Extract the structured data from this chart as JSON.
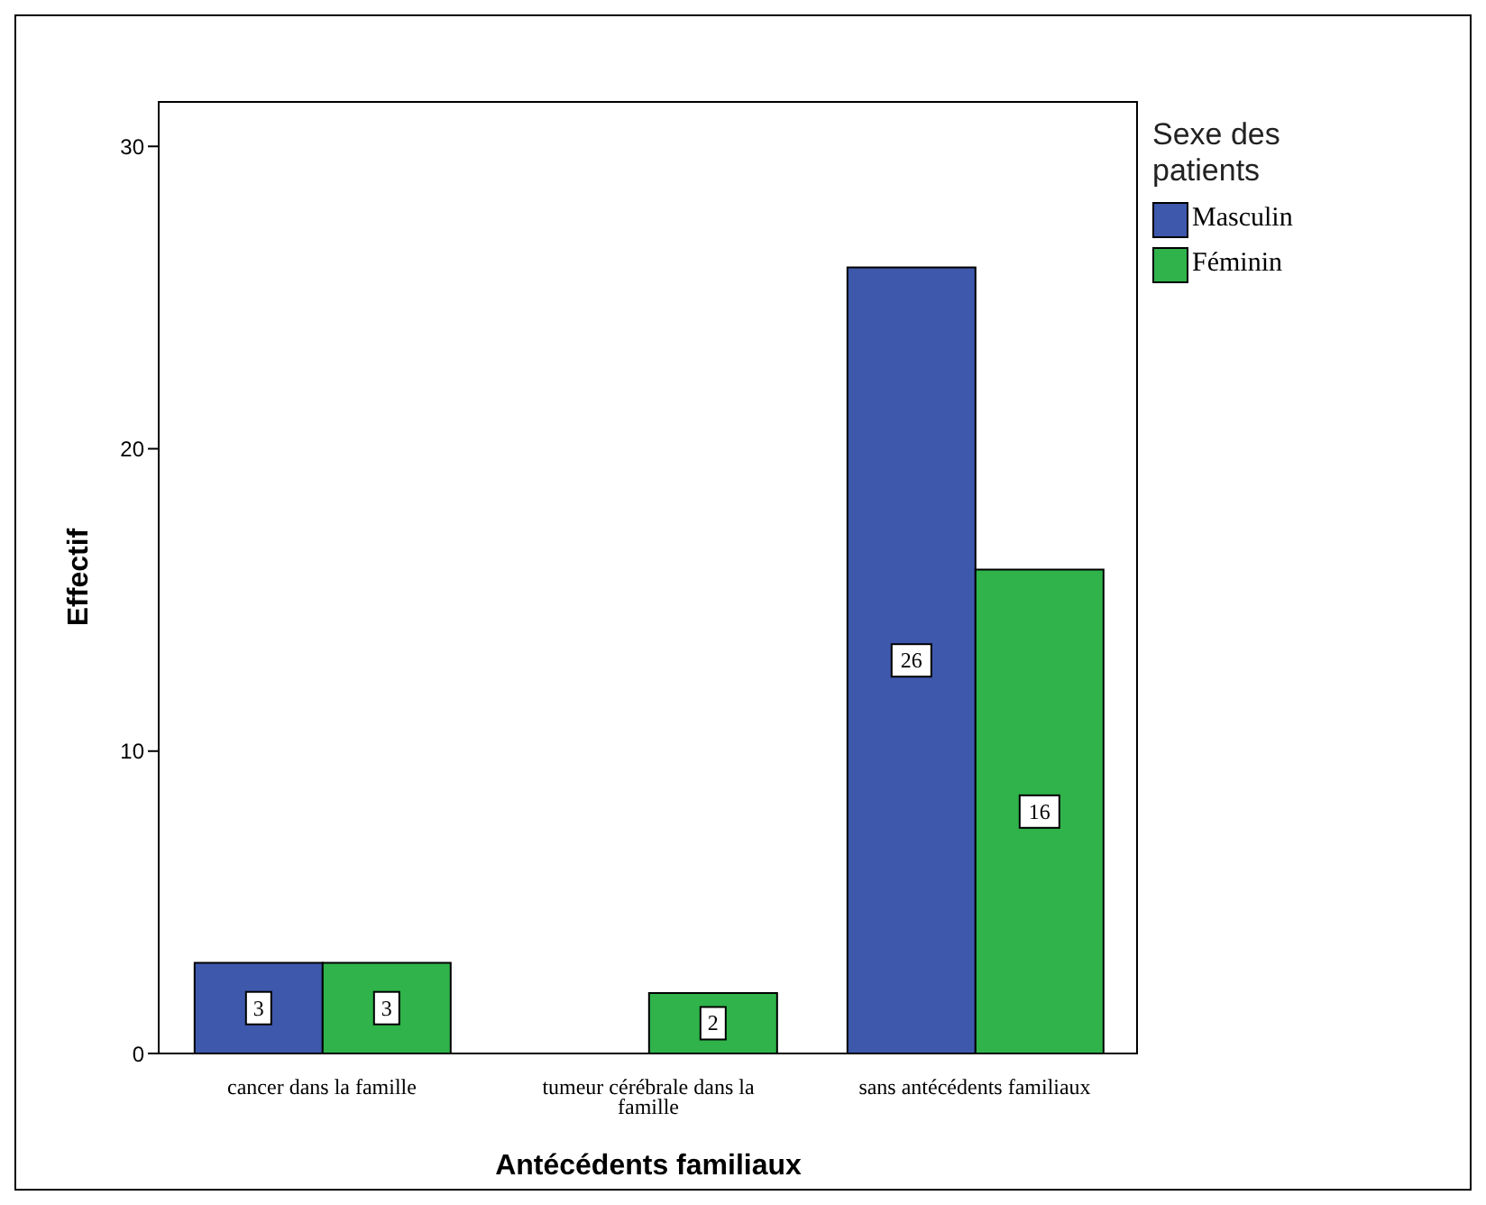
{
  "chart_data": {
    "type": "bar",
    "xlabel": "Antécédents familiaux",
    "ylabel": "Effectif",
    "legend_title": "Sexe des patients",
    "categories": [
      "cancer dans la famille",
      "tumeur cérébrale dans la famille",
      "sans antécédents familiaux"
    ],
    "series": [
      {
        "name": "Masculin",
        "color": "#3e58ac",
        "values": [
          3,
          null,
          26
        ]
      },
      {
        "name": "Féminin",
        "color": "#2fb34a",
        "values": [
          3,
          2,
          16
        ]
      }
    ],
    "ylim": [
      0,
      31.5
    ],
    "yticks": [
      0,
      10,
      20,
      30
    ],
    "legend": "right",
    "data_labels": true
  }
}
